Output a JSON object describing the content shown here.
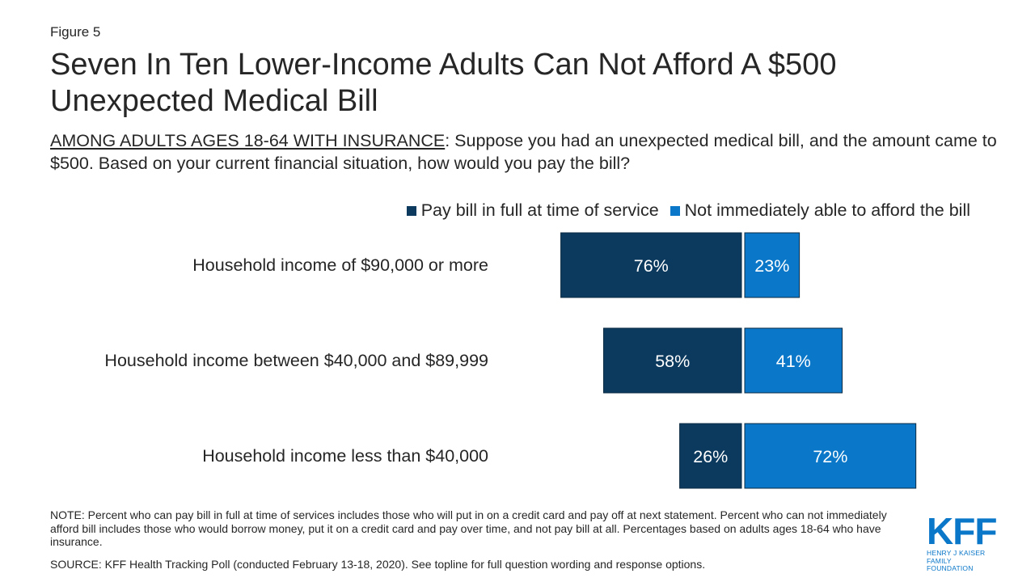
{
  "figure_label": "Figure 5",
  "title": "Seven In Ten Lower-Income Adults Can Not Afford A $500 Unexpected Medical Bill",
  "subtitle": {
    "lead": "AMONG ADULTS AGES 18-64 WITH INSURANCE",
    "text": ": Suppose you had an unexpected medical bill, and the amount came to $500. Based on your current financial situation, how would you pay the bill?"
  },
  "colors": {
    "pay_in_full": "#0c3a5e",
    "not_afford": "#0a77c9",
    "text": "#262626",
    "logo": "#0a77c9"
  },
  "chart_data": {
    "type": "bar",
    "orientation": "horizontal-diverging",
    "categories": [
      "Household income of $90,000 or more",
      "Household income between $40,000 and $89,999",
      "Household income less than $40,000"
    ],
    "series": [
      {
        "name": "Pay bill in full at time of service",
        "values": [
          76,
          58,
          26
        ],
        "labels": [
          "76%",
          "58%",
          "26%"
        ]
      },
      {
        "name": "Not immediately able to afford the bill",
        "values": [
          23,
          41,
          72
        ],
        "labels": [
          "23%",
          "41%",
          "72%"
        ]
      }
    ],
    "legend_position": "top-right",
    "grid": false
  },
  "note": "NOTE: Percent who can pay bill in full at time of services includes those who will put in on a credit card and pay off at next statement. Percent who can not immediately afford bill includes those who would borrow money, put it on a credit card and pay over time, and not pay bill at all. Percentages based on adults ages 18-64 who have insurance.",
  "source": "SOURCE: KFF Health Tracking Poll (conducted February 13-18, 2020). See topline for full question wording and response options.",
  "logo": {
    "mark": "KFF",
    "line1": "HENRY J KAISER",
    "line2": "FAMILY FOUNDATION"
  }
}
